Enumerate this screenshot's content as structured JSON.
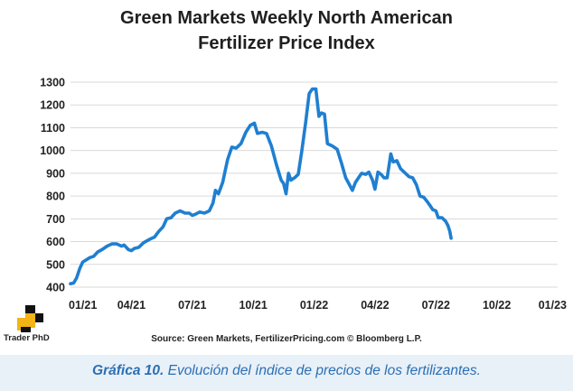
{
  "chart_data": {
    "type": "line",
    "title_line1": "Green Markets Weekly North American",
    "title_line2": "Fertilizer Price Index",
    "xlabel": "",
    "ylabel": "",
    "ylim": [
      400,
      1300
    ],
    "yticks": [
      400,
      500,
      600,
      700,
      800,
      900,
      1000,
      1100,
      1200,
      1300
    ],
    "xtick_labels": [
      "01/21",
      "04/21",
      "07/21",
      "10/21",
      "01/22",
      "04/22",
      "07/22",
      "10/22",
      "01/23"
    ],
    "grid": "horizontal",
    "color": "#1f7fd1",
    "series": [
      {
        "values": [
          [
            0,
            415
          ],
          [
            0.05,
            418
          ],
          [
            0.1,
            440
          ],
          [
            0.15,
            480
          ],
          [
            0.2,
            510
          ],
          [
            0.26,
            520
          ],
          [
            0.32,
            530
          ],
          [
            0.38,
            535
          ],
          [
            0.45,
            555
          ],
          [
            0.52,
            565
          ],
          [
            0.6,
            580
          ],
          [
            0.68,
            590
          ],
          [
            0.76,
            590
          ],
          [
            0.84,
            580
          ],
          [
            0.88,
            585
          ],
          [
            0.95,
            565
          ],
          [
            1.0,
            560
          ],
          [
            1.05,
            570
          ],
          [
            1.12,
            575
          ],
          [
            1.2,
            595
          ],
          [
            1.3,
            610
          ],
          [
            1.38,
            620
          ],
          [
            1.45,
            645
          ],
          [
            1.52,
            665
          ],
          [
            1.58,
            700
          ],
          [
            1.65,
            705
          ],
          [
            1.72,
            725
          ],
          [
            1.8,
            735
          ],
          [
            1.88,
            725
          ],
          [
            1.95,
            725
          ],
          [
            2.0,
            715
          ],
          [
            2.05,
            720
          ],
          [
            2.12,
            730
          ],
          [
            2.2,
            725
          ],
          [
            2.28,
            735
          ],
          [
            2.34,
            770
          ],
          [
            2.38,
            825
          ],
          [
            2.43,
            810
          ],
          [
            2.5,
            860
          ],
          [
            2.58,
            960
          ],
          [
            2.65,
            1015
          ],
          [
            2.72,
            1010
          ],
          [
            2.8,
            1030
          ],
          [
            2.88,
            1080
          ],
          [
            2.95,
            1110
          ],
          [
            3.02,
            1120
          ],
          [
            3.07,
            1075
          ],
          [
            3.15,
            1080
          ],
          [
            3.22,
            1075
          ],
          [
            3.3,
            1020
          ],
          [
            3.38,
            940
          ],
          [
            3.46,
            870
          ],
          [
            3.5,
            855
          ],
          [
            3.54,
            810
          ],
          [
            3.58,
            900
          ],
          [
            3.62,
            870
          ],
          [
            3.68,
            880
          ],
          [
            3.74,
            895
          ],
          [
            3.8,
            1000
          ],
          [
            3.86,
            1120
          ],
          [
            3.92,
            1250
          ],
          [
            3.97,
            1270
          ],
          [
            4.03,
            1270
          ],
          [
            4.08,
            1150
          ],
          [
            4.12,
            1165
          ],
          [
            4.17,
            1160
          ],
          [
            4.22,
            1030
          ],
          [
            4.3,
            1020
          ],
          [
            4.38,
            1005
          ],
          [
            4.45,
            945
          ],
          [
            4.52,
            880
          ],
          [
            4.58,
            850
          ],
          [
            4.63,
            825
          ],
          [
            4.68,
            860
          ],
          [
            4.73,
            880
          ],
          [
            4.78,
            900
          ],
          [
            4.85,
            895
          ],
          [
            4.9,
            905
          ],
          [
            4.96,
            870
          ],
          [
            5.0,
            830
          ],
          [
            5.05,
            905
          ],
          [
            5.1,
            895
          ],
          [
            5.15,
            880
          ],
          [
            5.2,
            880
          ],
          [
            5.26,
            985
          ],
          [
            5.3,
            950
          ],
          [
            5.36,
            955
          ],
          [
            5.42,
            920
          ],
          [
            5.5,
            900
          ],
          [
            5.56,
            885
          ],
          [
            5.62,
            880
          ],
          [
            5.68,
            850
          ],
          [
            5.74,
            800
          ],
          [
            5.8,
            795
          ],
          [
            5.86,
            775
          ],
          [
            5.9,
            760
          ],
          [
            5.95,
            740
          ],
          [
            6.0,
            735
          ],
          [
            6.04,
            705
          ],
          [
            6.1,
            705
          ],
          [
            6.16,
            690
          ],
          [
            6.2,
            670
          ],
          [
            6.23,
            645
          ],
          [
            6.25,
            615
          ]
        ]
      }
    ]
  },
  "logo": {
    "name": "trader-phd-logo",
    "text": "Trader PhD"
  },
  "source_text": "Source: Green Markets, FertilizerPricing.com © Bloomberg L.P.",
  "caption": {
    "label": "Gráfica 10.",
    "text": " Evolución del índice de precios de los fertilizantes."
  }
}
